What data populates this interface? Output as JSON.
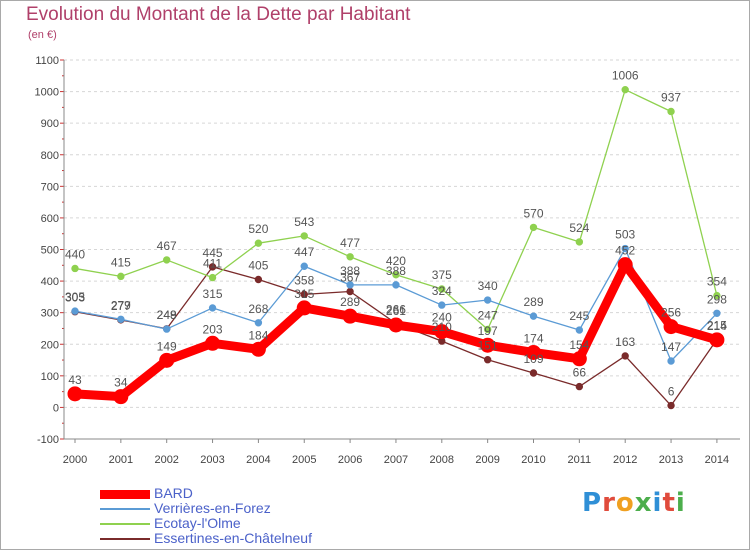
{
  "header": {
    "title": "Evolution du Montant de la Dette par Habitant",
    "subtitle": "(en €)"
  },
  "logo": {
    "text": "Proxiti",
    "colors": [
      "#2f8fd6",
      "#e04b3c",
      "#f0a020",
      "#4cae4c",
      "#2f8fd6",
      "#e04b3c",
      "#4cae4c"
    ]
  },
  "chart_data": {
    "type": "line",
    "title": "Evolution du Montant de la Dette par Habitant",
    "ylabel": "(en €)",
    "xlabel": "",
    "x": [
      "2000",
      "2001",
      "2002",
      "2003",
      "2004",
      "2005",
      "2006",
      "2007",
      "2008",
      "2009",
      "2010",
      "2011",
      "2012",
      "2013",
      "2014"
    ],
    "ylim": [
      -100,
      1100
    ],
    "yticks": [
      "-100",
      "0",
      "100",
      "200",
      "300",
      "400",
      "500",
      "600",
      "700",
      "800",
      "900",
      "1000",
      "1100"
    ],
    "grid": "horizontal dashed",
    "legend_position": "bottom-left",
    "series": [
      {
        "name": "BARD",
        "color": "#ff0000",
        "values": [
          43,
          34,
          149,
          203,
          184,
          315,
          289,
          261,
          240,
          197,
          174,
          154,
          452,
          256,
          214
        ],
        "labels": [
          "43",
          "34",
          "149",
          "203",
          "184",
          "315",
          "289",
          "261",
          "240",
          "197",
          "174",
          "154",
          "452",
          "256",
          "214"
        ]
      },
      {
        "name": "Verrières-en-Forez",
        "color": "#5b9bd5",
        "values": [
          305,
          279,
          248,
          315,
          268,
          447,
          388,
          388,
          324,
          340,
          289,
          245,
          503,
          147,
          298
        ],
        "labels": [
          "305",
          "279",
          "248",
          "315",
          "268",
          "447",
          "388",
          "388",
          "324",
          "340",
          "289",
          "245",
          "503",
          "147",
          "298"
        ]
      },
      {
        "name": "Ecotay-l'Olme",
        "color": "#8fd14f",
        "values": [
          440,
          415,
          467,
          411,
          520,
          543,
          477,
          420,
          375,
          247,
          570,
          524,
          1006,
          937,
          354
        ],
        "labels": [
          "440",
          "415",
          "467",
          "411",
          "520",
          "543",
          "477",
          "420",
          "375",
          "247",
          "570",
          "524",
          "1006",
          "937",
          "354"
        ]
      },
      {
        "name": "Essertines-en-Châtelneuf",
        "color": "#7a2b2b",
        "values": [
          303,
          277,
          249,
          445,
          405,
          358,
          367,
          266,
          210,
          151,
          109,
          66,
          163,
          6,
          215
        ],
        "labels": [
          "303",
          "277",
          "249",
          "445",
          "405",
          "358",
          "367",
          "266",
          "210",
          "151",
          "109",
          "66",
          "163",
          "6",
          "215"
        ]
      }
    ]
  }
}
